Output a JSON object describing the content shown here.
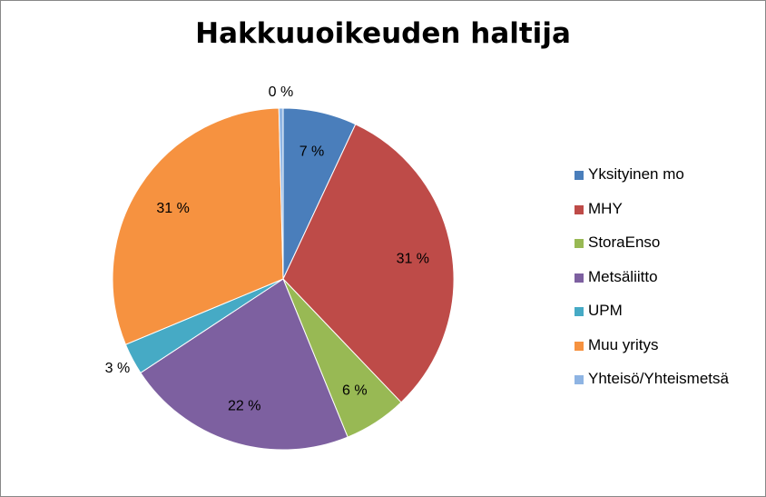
{
  "chart_data": {
    "type": "pie",
    "title": "Hakkuuoikeuden haltija",
    "legend_position": "right",
    "slices": [
      {
        "name": "Yksityinen mo",
        "value": 7,
        "label": "7 %",
        "color": "#4a7ebb"
      },
      {
        "name": "MHY",
        "value": 31,
        "label": "31 %",
        "color": "#be4b48"
      },
      {
        "name": "StoraEnso",
        "value": 6,
        "label": "6 %",
        "color": "#98b954"
      },
      {
        "name": "Metsäliitto",
        "value": 22,
        "label": "22 %",
        "color": "#7d60a0"
      },
      {
        "name": "UPM",
        "value": 3,
        "label": "3 %",
        "color": "#46aac5"
      },
      {
        "name": "Muu yritys",
        "value": 31,
        "label": "31 %",
        "color": "#f69240"
      },
      {
        "name": "Yhteisö/Yhteismetsä",
        "value": 0.4,
        "label": "0 %",
        "color": "#8eb4e3"
      }
    ]
  }
}
